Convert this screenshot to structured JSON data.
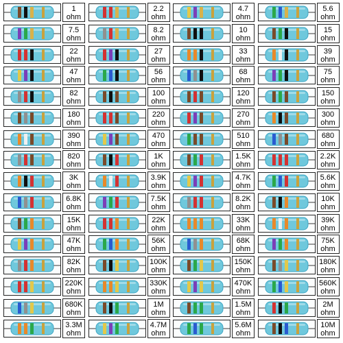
{
  "unit": "ohm",
  "resistors": [
    {
      "value": "1",
      "bands": [
        "#7a4a2a",
        "#101010",
        "#d8b24a",
        "#c9a23d"
      ]
    },
    {
      "value": "2.2",
      "bands": [
        "#d33232",
        "#d33232",
        "#d8b24a",
        "#c9a23d"
      ]
    },
    {
      "value": "4.7",
      "bands": [
        "#e3c84a",
        "#7b3fb8",
        "#d8b24a",
        "#c9a23d"
      ]
    },
    {
      "value": "5.6",
      "bands": [
        "#2aa84a",
        "#2a5bd0",
        "#d8b24a",
        "#c9a23d"
      ]
    },
    {
      "value": "7.5",
      "bands": [
        "#7b3fb8",
        "#2aa84a",
        "#d8b24a",
        "#c9a23d"
      ]
    },
    {
      "value": "8.2",
      "bands": [
        "#909090",
        "#d33232",
        "#d8b24a",
        "#c9a23d"
      ]
    },
    {
      "value": "10",
      "bands": [
        "#7a4a2a",
        "#101010",
        "#101010",
        "#c9a23d"
      ]
    },
    {
      "value": "15",
      "bands": [
        "#7a4a2a",
        "#2aa84a",
        "#101010",
        "#c9a23d"
      ]
    },
    {
      "value": "22",
      "bands": [
        "#d33232",
        "#d33232",
        "#101010",
        "#c9a23d"
      ]
    },
    {
      "value": "27",
      "bands": [
        "#d33232",
        "#7b3fb8",
        "#101010",
        "#c9a23d"
      ]
    },
    {
      "value": "33",
      "bands": [
        "#e8892a",
        "#e8892a",
        "#101010",
        "#c9a23d"
      ]
    },
    {
      "value": "39",
      "bands": [
        "#e8892a",
        "#f0f0f0",
        "#101010",
        "#c9a23d"
      ]
    },
    {
      "value": "47",
      "bands": [
        "#e3c84a",
        "#7b3fb8",
        "#101010",
        "#c9a23d"
      ]
    },
    {
      "value": "56",
      "bands": [
        "#2aa84a",
        "#2a5bd0",
        "#101010",
        "#c9a23d"
      ]
    },
    {
      "value": "68",
      "bands": [
        "#2a5bd0",
        "#909090",
        "#101010",
        "#c9a23d"
      ]
    },
    {
      "value": "75",
      "bands": [
        "#7b3fb8",
        "#2aa84a",
        "#101010",
        "#c9a23d"
      ]
    },
    {
      "value": "82",
      "bands": [
        "#909090",
        "#d33232",
        "#101010",
        "#c9a23d"
      ]
    },
    {
      "value": "100",
      "bands": [
        "#7a4a2a",
        "#101010",
        "#7a4a2a",
        "#c9a23d"
      ]
    },
    {
      "value": "120",
      "bands": [
        "#7a4a2a",
        "#d33232",
        "#7a4a2a",
        "#c9a23d"
      ]
    },
    {
      "value": "150",
      "bands": [
        "#7a4a2a",
        "#2aa84a",
        "#7a4a2a",
        "#c9a23d"
      ]
    },
    {
      "value": "180",
      "bands": [
        "#7a4a2a",
        "#909090",
        "#7a4a2a",
        "#c9a23d"
      ]
    },
    {
      "value": "220",
      "bands": [
        "#d33232",
        "#d33232",
        "#7a4a2a",
        "#c9a23d"
      ]
    },
    {
      "value": "270",
      "bands": [
        "#d33232",
        "#7b3fb8",
        "#7a4a2a",
        "#c9a23d"
      ]
    },
    {
      "value": "300",
      "bands": [
        "#e8892a",
        "#101010",
        "#7a4a2a",
        "#c9a23d"
      ]
    },
    {
      "value": "390",
      "bands": [
        "#e8892a",
        "#f0f0f0",
        "#7a4a2a",
        "#c9a23d"
      ]
    },
    {
      "value": "470",
      "bands": [
        "#e3c84a",
        "#7b3fb8",
        "#7a4a2a",
        "#c9a23d"
      ]
    },
    {
      "value": "510",
      "bands": [
        "#2aa84a",
        "#7a4a2a",
        "#7a4a2a",
        "#c9a23d"
      ]
    },
    {
      "value": "680",
      "bands": [
        "#2a5bd0",
        "#909090",
        "#7a4a2a",
        "#c9a23d"
      ]
    },
    {
      "value": "820",
      "bands": [
        "#909090",
        "#d33232",
        "#7a4a2a",
        "#c9a23d"
      ]
    },
    {
      "value": "1K",
      "bands": [
        "#7a4a2a",
        "#101010",
        "#d33232",
        "#c9a23d"
      ]
    },
    {
      "value": "1.5K",
      "bands": [
        "#7a4a2a",
        "#2aa84a",
        "#d33232",
        "#c9a23d"
      ]
    },
    {
      "value": "2.2K",
      "bands": [
        "#d33232",
        "#d33232",
        "#d33232",
        "#c9a23d"
      ]
    },
    {
      "value": "3K",
      "bands": [
        "#e8892a",
        "#101010",
        "#d33232",
        "#c9a23d"
      ]
    },
    {
      "value": "3.9K",
      "bands": [
        "#e8892a",
        "#f0f0f0",
        "#d33232",
        "#c9a23d"
      ]
    },
    {
      "value": "4.7K",
      "bands": [
        "#e3c84a",
        "#7b3fb8",
        "#d33232",
        "#c9a23d"
      ]
    },
    {
      "value": "5.6K",
      "bands": [
        "#2aa84a",
        "#2a5bd0",
        "#d33232",
        "#c9a23d"
      ]
    },
    {
      "value": "6.8K",
      "bands": [
        "#2a5bd0",
        "#909090",
        "#d33232",
        "#c9a23d"
      ]
    },
    {
      "value": "7.5K",
      "bands": [
        "#7b3fb8",
        "#2aa84a",
        "#d33232",
        "#c9a23d"
      ]
    },
    {
      "value": "8.2K",
      "bands": [
        "#909090",
        "#d33232",
        "#d33232",
        "#c9a23d"
      ]
    },
    {
      "value": "10K",
      "bands": [
        "#7a4a2a",
        "#101010",
        "#e8892a",
        "#c9a23d"
      ]
    },
    {
      "value": "15K",
      "bands": [
        "#7a4a2a",
        "#2aa84a",
        "#e8892a",
        "#c9a23d"
      ]
    },
    {
      "value": "22K",
      "bands": [
        "#d33232",
        "#d33232",
        "#e8892a",
        "#c9a23d"
      ]
    },
    {
      "value": "33K",
      "bands": [
        "#e8892a",
        "#e8892a",
        "#e8892a",
        "#c9a23d"
      ]
    },
    {
      "value": "39K",
      "bands": [
        "#e8892a",
        "#f0f0f0",
        "#e8892a",
        "#c9a23d"
      ]
    },
    {
      "value": "47K",
      "bands": [
        "#e3c84a",
        "#7b3fb8",
        "#e8892a",
        "#c9a23d"
      ]
    },
    {
      "value": "56K",
      "bands": [
        "#2aa84a",
        "#2a5bd0",
        "#e8892a",
        "#c9a23d"
      ]
    },
    {
      "value": "68K",
      "bands": [
        "#2a5bd0",
        "#909090",
        "#e8892a",
        "#c9a23d"
      ]
    },
    {
      "value": "75K",
      "bands": [
        "#7b3fb8",
        "#2aa84a",
        "#e8892a",
        "#c9a23d"
      ]
    },
    {
      "value": "82K",
      "bands": [
        "#909090",
        "#d33232",
        "#e8892a",
        "#c9a23d"
      ]
    },
    {
      "value": "100K",
      "bands": [
        "#7a4a2a",
        "#101010",
        "#e3c84a",
        "#c9a23d"
      ]
    },
    {
      "value": "150K",
      "bands": [
        "#7a4a2a",
        "#2aa84a",
        "#e3c84a",
        "#c9a23d"
      ]
    },
    {
      "value": "180K",
      "bands": [
        "#7a4a2a",
        "#909090",
        "#e3c84a",
        "#c9a23d"
      ]
    },
    {
      "value": "220K",
      "bands": [
        "#d33232",
        "#d33232",
        "#e3c84a",
        "#c9a23d"
      ]
    },
    {
      "value": "330K",
      "bands": [
        "#e8892a",
        "#e8892a",
        "#e3c84a",
        "#c9a23d"
      ]
    },
    {
      "value": "470K",
      "bands": [
        "#e3c84a",
        "#7b3fb8",
        "#e3c84a",
        "#c9a23d"
      ]
    },
    {
      "value": "560K",
      "bands": [
        "#2aa84a",
        "#2a5bd0",
        "#e3c84a",
        "#c9a23d"
      ]
    },
    {
      "value": "680K",
      "bands": [
        "#2a5bd0",
        "#909090",
        "#e3c84a",
        "#c9a23d"
      ]
    },
    {
      "value": "1M",
      "bands": [
        "#7a4a2a",
        "#101010",
        "#2aa84a",
        "#c9a23d"
      ]
    },
    {
      "value": "1.5M",
      "bands": [
        "#7a4a2a",
        "#2aa84a",
        "#2aa84a",
        "#c9a23d"
      ]
    },
    {
      "value": "2M",
      "bands": [
        "#d33232",
        "#101010",
        "#2aa84a",
        "#c9a23d"
      ]
    },
    {
      "value": "3.3M",
      "bands": [
        "#e8892a",
        "#e8892a",
        "#2aa84a",
        "#c9a23d"
      ]
    },
    {
      "value": "4.7M",
      "bands": [
        "#e3c84a",
        "#7b3fb8",
        "#2aa84a",
        "#c9a23d"
      ]
    },
    {
      "value": "5.6M",
      "bands": [
        "#2aa84a",
        "#2a5bd0",
        "#2aa84a",
        "#c9a23d"
      ]
    },
    {
      "value": "10M",
      "bands": [
        "#7a4a2a",
        "#101010",
        "#2a5bd0",
        "#c9a23d"
      ]
    }
  ],
  "colors": {
    "body": "#6fc8dc",
    "body_shade": "#3fa6c4",
    "lead": "#9a9a9a"
  }
}
